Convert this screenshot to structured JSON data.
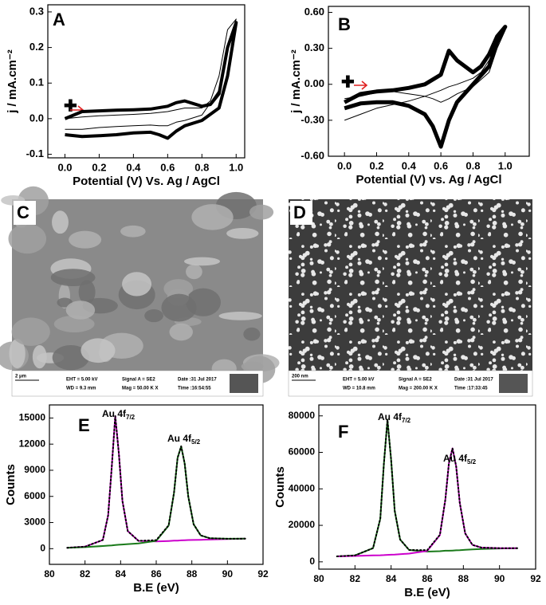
{
  "chart_data": [
    {
      "type": "line",
      "label": "A",
      "xlabel": "Potential (V) Vs. Ag / AgCl",
      "ylabel": "j / mA.cm⁻²",
      "x": [
        0,
        0.1,
        0.2,
        0.3,
        0.4,
        0.5,
        0.6,
        0.65,
        0.7,
        0.8,
        0.85,
        0.9,
        0.95,
        1.0,
        0.95,
        0.9,
        0.8,
        0.7,
        0.65,
        0.6,
        0.55,
        0.5,
        0.4,
        0.3,
        0.2,
        0.1,
        0
      ],
      "series": [
        {
          "color": "#000000",
          "width": 1,
          "values": [
            0.0,
            0.005,
            0.008,
            0.01,
            0.012,
            0.015,
            0.02,
            0.025,
            0.03,
            0.03,
            0.05,
            0.12,
            0.25,
            0.28,
            0.2,
            0.08,
            0.01,
            -0.005,
            -0.01,
            -0.02,
            -0.02,
            -0.018,
            -0.02,
            -0.022,
            -0.025,
            -0.03,
            -0.03
          ]
        },
        {
          "color": "#000000",
          "width": 4,
          "values": [
            0.0,
            0.02,
            0.022,
            0.024,
            0.025,
            0.027,
            0.035,
            0.045,
            0.05,
            0.035,
            0.04,
            0.07,
            0.2,
            0.27,
            0.12,
            0.03,
            -0.005,
            -0.02,
            -0.035,
            -0.055,
            -0.045,
            -0.038,
            -0.04,
            -0.045,
            -0.048,
            -0.05,
            -0.045
          ]
        }
      ],
      "xlim": [
        -0.1,
        1.05
      ],
      "ylim": [
        -0.11,
        0.32
      ],
      "xticks": [
        {
          "value": 0,
          "label": "0.0"
        },
        {
          "value": 0.2,
          "label": "0.2"
        },
        {
          "value": 0.4,
          "label": "0.4"
        },
        {
          "value": 0.6,
          "label": "0.6"
        },
        {
          "value": 0.8,
          "label": "0.8"
        },
        {
          "value": 1,
          "label": "1.0"
        }
      ],
      "yticks": [
        {
          "value": -0.1,
          "label": "-0.1"
        },
        {
          "value": 0,
          "label": "0.0"
        },
        0.1,
        0.2,
        0.3
      ]
    },
    {
      "type": "line",
      "label": "B",
      "xlabel": "Potential (V) vs. Ag / AgCl",
      "ylabel": "j / mA.cm⁻²",
      "x": [
        0,
        0.1,
        0.2,
        0.3,
        0.4,
        0.5,
        0.6,
        0.65,
        0.7,
        0.8,
        0.85,
        0.9,
        0.95,
        1.0,
        0.95,
        0.9,
        0.8,
        0.7,
        0.65,
        0.6,
        0.55,
        0.5,
        0.4,
        0.3,
        0.2,
        0.1,
        0
      ],
      "series": [
        {
          "color": "#000000",
          "width": 1,
          "values": [
            -0.3,
            -0.25,
            -0.2,
            -0.17,
            -0.14,
            -0.1,
            -0.05,
            -0.02,
            0.0,
            0.05,
            0.1,
            0.2,
            0.35,
            0.45,
            0.3,
            0.1,
            -0.02,
            -0.08,
            -0.12,
            -0.15,
            -0.12,
            -0.1,
            -0.08,
            -0.06,
            -0.07,
            -0.1,
            -0.12
          ]
        },
        {
          "color": "#000000",
          "width": 5,
          "values": [
            -0.15,
            -0.08,
            -0.06,
            -0.05,
            -0.03,
            0.0,
            0.08,
            0.28,
            0.2,
            0.1,
            0.15,
            0.25,
            0.4,
            0.48,
            0.35,
            0.15,
            0.0,
            -0.15,
            -0.3,
            -0.52,
            -0.35,
            -0.25,
            -0.18,
            -0.15,
            -0.15,
            -0.16,
            -0.2
          ]
        }
      ],
      "xlim": [
        -0.1,
        1.15
      ],
      "ylim": [
        -0.6,
        0.65
      ],
      "xticks": [
        {
          "value": 0,
          "label": "0.0"
        },
        {
          "value": 0.2,
          "label": "0.2"
        },
        {
          "value": 0.4,
          "label": "0.4"
        },
        {
          "value": 0.6,
          "label": "0.6"
        },
        {
          "value": 0.8,
          "label": "0.8"
        },
        {
          "value": 1,
          "label": "1.0"
        }
      ],
      "yticks": [
        {
          "value": -0.6,
          "label": "-0.60"
        },
        {
          "value": -0.3,
          "label": "-0.30"
        },
        {
          "value": 0,
          "label": "0.00"
        },
        {
          "value": 0.3,
          "label": "0.30"
        },
        {
          "value": 0.6,
          "label": "0.60"
        }
      ]
    },
    {
      "type": "line",
      "label": "E",
      "xlabel": "B.E (eV)",
      "ylabel": "Counts",
      "annotations": [
        {
          "text": "Au 4f",
          "sub": "7/2"
        },
        {
          "text": "Au 4f",
          "sub": "5/2"
        }
      ],
      "x": [
        81,
        82,
        83,
        83.3,
        83.5,
        83.7,
        83.9,
        84.1,
        84.4,
        85,
        86,
        86.7,
        87,
        87.2,
        87.4,
        87.6,
        87.8,
        88.1,
        88.5,
        89,
        90,
        91
      ],
      "series": [
        {
          "color": "#cc00cc",
          "width": 2,
          "values": [
            100,
            230,
            1000,
            3850,
            9380,
            15220,
            10950,
            5480,
            2020,
            900,
            830,
            880,
            920,
            920,
            950,
            970,
            990,
            1000,
            1020,
            1050,
            1100,
            1150
          ]
        },
        {
          "color": "#1a7a1a",
          "width": 2,
          "values": [
            100,
            180,
            300,
            350,
            380,
            420,
            450,
            480,
            520,
            600,
            900,
            2650,
            6400,
            10420,
            11750,
            9770,
            5990,
            2800,
            1520,
            1200,
            1140,
            1150
          ]
        },
        {
          "color": "#000000",
          "width": 2,
          "dotted": true,
          "values": [
            100,
            230,
            1000,
            3850,
            9380,
            15220,
            10950,
            5480,
            2020,
            900,
            980,
            2680,
            6420,
            10420,
            11750,
            9770,
            5990,
            2800,
            1520,
            1200,
            1140,
            1150
          ]
        }
      ],
      "xlim": [
        80,
        92
      ],
      "ylim": [
        -1800,
        16500
      ],
      "xticks": [
        80,
        82,
        84,
        86,
        88,
        90,
        92
      ],
      "yticks": [
        0,
        3000,
        6000,
        9000,
        12000,
        15000
      ]
    },
    {
      "type": "line",
      "label": "F",
      "xlabel": "B.E (eV)",
      "ylabel": "Counts",
      "annotations": [
        {
          "text": "Au 4f",
          "sub": "7/2"
        },
        {
          "text": "Au 4f",
          "sub": "5/2"
        }
      ],
      "x": [
        81,
        82,
        83,
        83.4,
        83.6,
        83.8,
        84,
        84.2,
        84.5,
        85,
        86,
        86.7,
        87,
        87.2,
        87.4,
        87.6,
        87.8,
        88.1,
        88.5,
        89,
        90,
        91
      ],
      "series": [
        {
          "color": "#1a7a1a",
          "width": 2,
          "values": [
            3000,
            3500,
            7500,
            23600,
            53700,
            77800,
            55900,
            28000,
            12200,
            6500,
            5600,
            5850,
            6100,
            6100,
            6200,
            6300,
            6400,
            6600,
            6800,
            7000,
            7300,
            7500
          ]
        },
        {
          "color": "#cc00cc",
          "width": 2,
          "values": [
            3000,
            3200,
            3500,
            3600,
            3700,
            3800,
            3900,
            4000,
            4200,
            4500,
            6000,
            14700,
            34000,
            54100,
            62200,
            52300,
            32400,
            15600,
            9300,
            7800,
            7500,
            7500
          ]
        },
        {
          "color": "#000000",
          "width": 2,
          "dotted": true,
          "values": [
            3000,
            3500,
            7500,
            23600,
            53700,
            77800,
            55900,
            28000,
            12200,
            6500,
            6400,
            14850,
            34100,
            54100,
            62200,
            52300,
            32400,
            15600,
            9300,
            7800,
            7500,
            7500
          ]
        }
      ],
      "xlim": [
        80,
        92
      ],
      "ylim": [
        -4000,
        86000
      ],
      "xticks": [
        80,
        82,
        84,
        86,
        88,
        90,
        92
      ],
      "yticks": [
        0,
        20000,
        40000,
        60000,
        80000
      ]
    }
  ],
  "images": [
    {
      "label": "C",
      "scale_bar": "2 μm",
      "info": [
        "EHT = 5.00 kV",
        "WD = 9.3 mm",
        "Signal A = SE2",
        "Mag = 50.00 K X",
        "Date :31 Jul 2017",
        "Time :16:54:55"
      ]
    },
    {
      "label": "D",
      "scale_bar": "200 nm",
      "info": [
        "EHT = 5.00 kV",
        "WD = 10.8 mm",
        "Signal A = SE2",
        "Mag = 200.00 K X",
        "Date :31 Jul 2017",
        "Time :17:33:45"
      ]
    }
  ]
}
